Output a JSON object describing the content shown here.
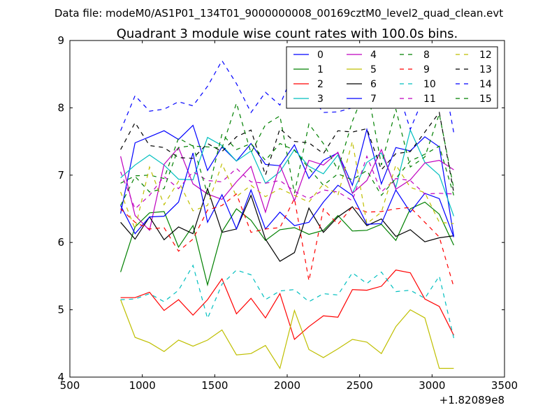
{
  "suptitle": "Data file: modeM0/AS1P01_134T01_9000000008_00169cztM0_level2_quad_clean.evt",
  "chart_data": {
    "type": "line",
    "title": "Quadrant 3 module wise count rates with 100.0s bins.",
    "xlabel": "",
    "ylabel": "",
    "x_offset_label": "+1.82089e8",
    "xlim": [
      500,
      3500
    ],
    "ylim": [
      4,
      9
    ],
    "xticks": [
      500,
      1000,
      1500,
      2000,
      2500,
      3000,
      3500
    ],
    "yticks": [
      4,
      5,
      6,
      7,
      8,
      9
    ],
    "grid": false,
    "legend_placement": "top-right",
    "legend_columns": 4,
    "x": [
      850,
      950,
      1050,
      1150,
      1250,
      1350,
      1450,
      1550,
      1650,
      1750,
      1850,
      1950,
      2050,
      2150,
      2250,
      2350,
      2450,
      2550,
      2650,
      2750,
      2850,
      2950,
      3050,
      3150
    ],
    "series": [
      {
        "name": "0",
        "color": "#0000ff",
        "style": "solid",
        "values": [
          6.43,
          7.48,
          7.57,
          7.66,
          7.53,
          7.74,
          7.07,
          7.42,
          7.21,
          7.47,
          7.16,
          7.14,
          7.45,
          6.95,
          7.22,
          7.33,
          6.85,
          7.68,
          6.87,
          7.41,
          7.36,
          7.57,
          7.42,
          6.09
        ]
      },
      {
        "name": "1",
        "color": "#008000",
        "style": "solid",
        "values": [
          5.56,
          6.23,
          6.44,
          6.46,
          5.93,
          6.25,
          5.37,
          6.16,
          6.5,
          6.33,
          6.03,
          6.19,
          6.22,
          6.12,
          6.18,
          6.4,
          6.17,
          6.18,
          6.27,
          6.03,
          6.5,
          6.6,
          6.42,
          5.96
        ]
      },
      {
        "name": "2",
        "color": "#ff0000",
        "style": "solid",
        "values": [
          5.18,
          5.18,
          5.26,
          4.99,
          5.15,
          4.92,
          5.15,
          5.46,
          4.94,
          5.17,
          4.88,
          5.24,
          4.56,
          4.75,
          4.91,
          4.89,
          5.3,
          5.29,
          5.35,
          5.59,
          5.55,
          5.16,
          5.05,
          4.62
        ]
      },
      {
        "name": "3",
        "color": "#00bfbf",
        "style": "solid",
        "values": [
          6.96,
          7.15,
          7.3,
          7.15,
          6.94,
          6.93,
          7.56,
          7.44,
          7.21,
          7.36,
          6.88,
          7.05,
          7.38,
          7.13,
          7.02,
          7.3,
          6.73,
          7.19,
          7.33,
          6.82,
          7.67,
          7.19,
          7.0,
          6.39
        ]
      },
      {
        "name": "4",
        "color": "#bf00bf",
        "style": "solid",
        "values": [
          7.28,
          6.4,
          6.18,
          7.16,
          7.41,
          6.87,
          6.72,
          6.64,
          6.9,
          7.13,
          6.45,
          7.15,
          6.62,
          7.22,
          7.15,
          7.34,
          6.73,
          6.92,
          7.38,
          6.79,
          6.93,
          7.18,
          7.22,
          7.08
        ]
      },
      {
        "name": "5",
        "color": "#bfbf00",
        "style": "solid",
        "values": [
          5.15,
          4.59,
          4.51,
          4.38,
          4.55,
          4.46,
          4.55,
          4.7,
          4.33,
          4.35,
          4.47,
          4.13,
          4.99,
          4.41,
          4.29,
          4.42,
          4.56,
          4.52,
          4.35,
          4.75,
          5.0,
          4.88,
          4.13,
          4.13
        ]
      },
      {
        "name": "6",
        "color": "#000000",
        "style": "solid",
        "values": [
          6.3,
          6.05,
          6.38,
          6.04,
          6.23,
          6.13,
          6.8,
          6.15,
          6.2,
          6.7,
          6.05,
          5.72,
          5.85,
          6.51,
          6.15,
          6.38,
          6.53,
          6.25,
          6.35,
          6.09,
          6.19,
          6.01,
          6.07,
          6.1
        ]
      },
      {
        "name": "7",
        "color": "#0000ff",
        "style": "solid",
        "values": [
          6.55,
          6.13,
          6.38,
          6.39,
          6.6,
          7.33,
          6.3,
          6.71,
          6.2,
          6.78,
          6.2,
          6.45,
          6.25,
          6.3,
          6.6,
          6.85,
          6.7,
          6.27,
          6.28,
          6.78,
          6.45,
          6.73,
          6.65,
          6.08
        ]
      },
      {
        "name": "8",
        "color": "#008000",
        "style": "dashed",
        "values": [
          6.88,
          6.99,
          7.0,
          6.95,
          7.55,
          7.43,
          7.42,
          7.4,
          8.07,
          7.33,
          7.75,
          7.88,
          6.73,
          7.76,
          7.47,
          7.08,
          7.8,
          8.33,
          7.15,
          7.98,
          7.12,
          7.27,
          7.91,
          6.8
        ]
      },
      {
        "name": "9",
        "color": "#ff0000",
        "style": "dashed",
        "values": [
          6.5,
          6.3,
          6.2,
          6.22,
          5.87,
          6.05,
          6.48,
          6.55,
          6.72,
          6.15,
          6.2,
          6.22,
          6.65,
          5.43,
          6.5,
          6.27,
          6.53,
          6.45,
          6.46,
          6.5,
          6.52,
          6.3,
          6.08,
          5.34
        ]
      },
      {
        "name": "10",
        "color": "#00bfbf",
        "style": "dashed",
        "values": [
          5.15,
          5.16,
          5.24,
          5.12,
          5.29,
          5.66,
          4.87,
          5.38,
          5.59,
          5.52,
          5.15,
          5.28,
          5.3,
          5.12,
          5.24,
          5.22,
          5.55,
          5.39,
          5.56,
          5.27,
          5.29,
          5.17,
          5.5,
          4.58
        ]
      },
      {
        "name": "11",
        "color": "#bf00bf",
        "style": "dashed",
        "values": [
          7.05,
          6.5,
          6.7,
          6.98,
          6.8,
          7.05,
          6.92,
          6.9,
          7.1,
          6.9,
          6.88,
          6.92,
          6.76,
          6.65,
          6.78,
          6.75,
          6.62,
          7.28,
          6.75,
          6.95,
          6.92,
          6.72,
          6.73,
          6.72
        ]
      },
      {
        "name": "12",
        "color": "#bfbf00",
        "style": "dashed",
        "values": [
          6.75,
          6.2,
          7.12,
          6.56,
          6.91,
          6.47,
          6.55,
          7.17,
          6.68,
          6.85,
          6.68,
          6.8,
          6.7,
          6.6,
          6.87,
          6.7,
          7.5,
          6.28,
          6.45,
          7.15,
          6.82,
          6.74,
          6.3,
          6.28
        ]
      },
      {
        "name": "13",
        "color": "#000000",
        "style": "dashed",
        "values": [
          7.38,
          7.78,
          7.44,
          7.41,
          7.26,
          7.25,
          7.47,
          7.35,
          7.57,
          7.67,
          7.0,
          7.69,
          7.5,
          7.48,
          7.32,
          7.66,
          7.64,
          7.69,
          7.08,
          7.32,
          7.35,
          7.64,
          7.93,
          6.74
        ]
      },
      {
        "name": "14",
        "color": "#0000ff",
        "style": "dashed",
        "values": [
          7.66,
          8.18,
          7.95,
          7.98,
          8.09,
          8.03,
          8.32,
          8.7,
          8.36,
          7.93,
          8.23,
          8.04,
          8.56,
          8.2,
          7.93,
          7.94,
          8.0,
          8.5,
          8.78,
          8.35,
          7.68,
          8.2,
          8.81,
          7.63
        ]
      },
      {
        "name": "15",
        "color": "#008000",
        "style": "dashed",
        "values": [
          6.55,
          6.98,
          6.75,
          6.8,
          7.41,
          7.44,
          6.72,
          7.61,
          7.38,
          7.47,
          7.22,
          7.47,
          7.37,
          7.1,
          6.85,
          7.02,
          6.93,
          7.07,
          6.7,
          6.95,
          7.21,
          7.31,
          7.43,
          6.7
        ]
      }
    ]
  }
}
